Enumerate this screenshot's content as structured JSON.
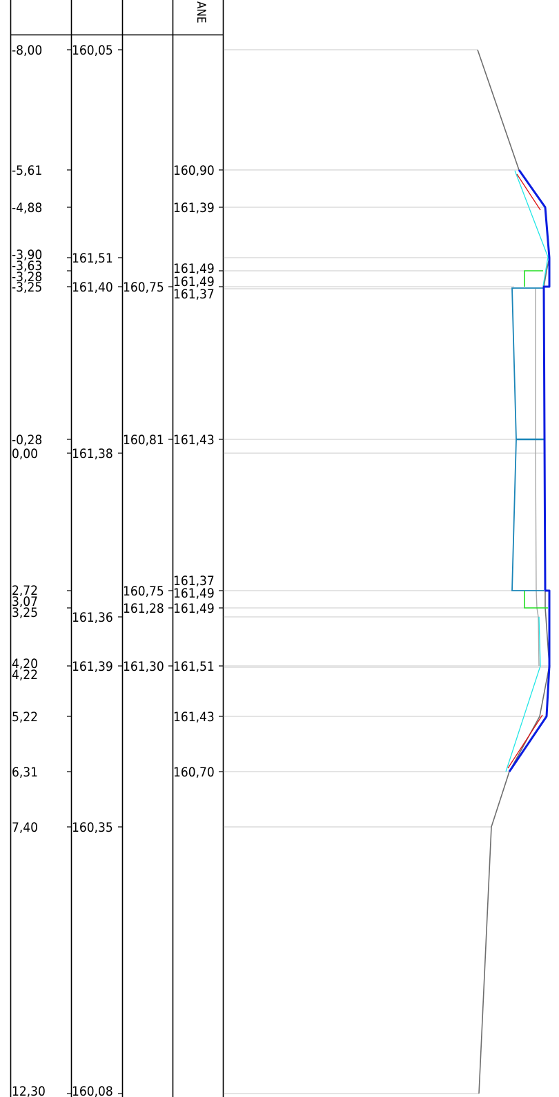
{
  "header": {
    "column4_fragment": "ANE"
  },
  "rows": [
    {
      "station": "-8,00",
      "col2": "160,05",
      "col3": "",
      "col4": ""
    },
    {
      "station": "-5,61",
      "col2": "",
      "col3": "",
      "col4": "160,90"
    },
    {
      "station": "-4,88",
      "col2": "",
      "col3": "",
      "col4": "161,39"
    },
    {
      "station": "-3,90",
      "col2": "161,51",
      "col3": "",
      "col4": ""
    },
    {
      "station": "-3,63",
      "col2": "",
      "col3": "",
      "col4": "161,49"
    },
    {
      "station": "-3,28",
      "col2": "161,40",
      "col3": "160,75",
      "col4": "161,49"
    },
    {
      "station": "-3,25",
      "col2": "",
      "col3": "",
      "col4": "161,37"
    },
    {
      "station": "-0,28",
      "col2": "",
      "col3": "160,81",
      "col4": "161,43"
    },
    {
      "station": "0,00",
      "col2": "161,38",
      "col3": "",
      "col4": ""
    },
    {
      "station": "2,72",
      "col2": "",
      "col3": "160,75",
      "col4": "161,37"
    },
    {
      "station": "3,07",
      "col2": "",
      "col3": "161,28",
      "col4": "161,49"
    },
    {
      "station": "3,25",
      "col2": "161,36",
      "col3": "",
      "col4": "161,49"
    },
    {
      "station": "4,20",
      "col2": "161,39",
      "col3": "161,30",
      "col4": "161,51"
    },
    {
      "station": "4,22",
      "col2": "",
      "col3": "",
      "col4": ""
    },
    {
      "station": "5,22",
      "col2": "",
      "col3": "",
      "col4": "161,43"
    },
    {
      "station": "6,31",
      "col2": "",
      "col3": "",
      "col4": "160,70"
    },
    {
      "station": "7,40",
      "col2": "160,35",
      "col3": "",
      "col4": ""
    },
    {
      "station": "12,30",
      "col2": "160,08",
      "col3": "",
      "col4": ""
    }
  ],
  "colors": {
    "grid": "#000000",
    "guide": "#d4d4d4",
    "terrain": "#6e6e6e",
    "design_top": "#0b1de0",
    "subgrade": "#1a85b8",
    "curb": "#22dd22",
    "offset_line": "#22e6e6",
    "slope_mark": "#e01010",
    "gray_line": "#a8a8a8"
  }
}
